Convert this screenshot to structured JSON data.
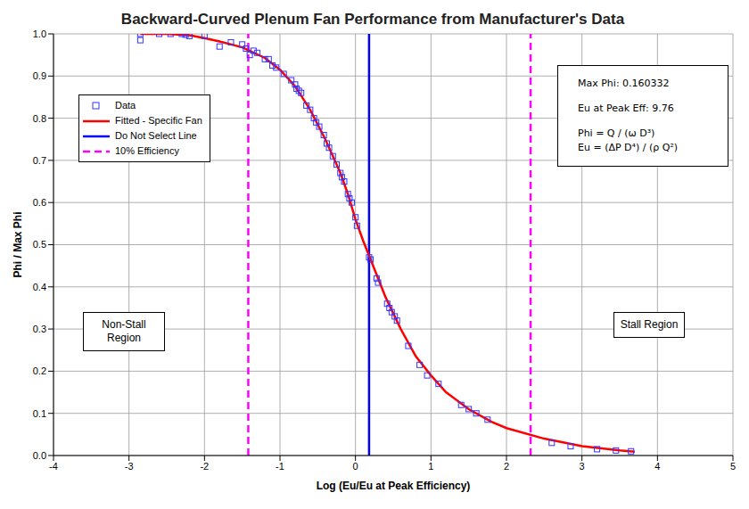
{
  "chart_data": {
    "type": "scatter",
    "title": "Backward-Curved Plenum Fan Performance from Manufacturer's Data",
    "x_label": "Log (Eu/Eu at Peak Efficiency)",
    "y_label": "Phi / Max Phi",
    "xlim": [
      -4,
      5
    ],
    "xticks": [
      -4,
      -3,
      -2,
      -1,
      0,
      1,
      2,
      3,
      4,
      5
    ],
    "ylim": [
      0,
      1
    ],
    "yticks": [
      {
        "value": 0,
        "label": "0.0"
      },
      0.1,
      0.2,
      0.3,
      0.4,
      0.5,
      0.6,
      0.7,
      0.8,
      0.9,
      {
        "value": 1,
        "label": "1.0"
      }
    ],
    "grid": true,
    "legend": "upper left",
    "series": [
      {
        "name": "Data",
        "type": "scatter",
        "color": "#3333ff",
        "marker": "square",
        "x": [
          -2.85,
          -2.85,
          -2.6,
          -2.45,
          -2.3,
          -2.25,
          -2.2,
          -2.0,
          -1.8,
          -1.65,
          -1.5,
          -1.45,
          -1.4,
          -1.35,
          -1.3,
          -1.2,
          -1.15,
          -1.1,
          -1.05,
          -0.95,
          -0.85,
          -0.8,
          -0.78,
          -0.75,
          -0.72,
          -0.65,
          -0.6,
          -0.55,
          -0.52,
          -0.48,
          -0.42,
          -0.38,
          -0.35,
          -0.3,
          -0.25,
          -0.2,
          -0.18,
          -0.15,
          -0.1,
          -0.08,
          -0.05,
          0.0,
          0.02,
          0.18,
          0.2,
          0.28,
          0.3,
          0.42,
          0.45,
          0.48,
          0.52,
          0.55,
          0.7,
          0.85,
          0.95,
          1.1,
          1.4,
          1.5,
          1.6,
          1.75,
          2.6,
          2.85,
          3.2,
          3.45,
          3.65
        ],
        "values": [
          1.0,
          0.985,
          1.0,
          1.0,
          1.0,
          0.998,
          0.995,
          0.995,
          0.97,
          0.98,
          0.975,
          0.965,
          0.95,
          0.96,
          0.955,
          0.94,
          0.94,
          0.925,
          0.92,
          0.905,
          0.89,
          0.88,
          0.87,
          0.865,
          0.86,
          0.83,
          0.82,
          0.8,
          0.79,
          0.78,
          0.76,
          0.74,
          0.73,
          0.71,
          0.69,
          0.67,
          0.66,
          0.65,
          0.62,
          0.61,
          0.6,
          0.565,
          0.545,
          0.47,
          0.465,
          0.42,
          0.41,
          0.36,
          0.35,
          0.34,
          0.33,
          0.32,
          0.26,
          0.215,
          0.19,
          0.17,
          0.12,
          0.11,
          0.1,
          0.085,
          0.03,
          0.022,
          0.015,
          0.012,
          0.01
        ]
      },
      {
        "name": "Fitted - Specific Fan",
        "type": "line",
        "color": "#ff0000",
        "line_style": "solid",
        "x": [
          -2.85,
          -2.5,
          -2.2,
          -2.0,
          -1.8,
          -1.5,
          -1.2,
          -1.0,
          -0.8,
          -0.6,
          -0.4,
          -0.2,
          -0.1,
          0.0,
          0.1,
          0.2,
          0.4,
          0.6,
          0.8,
          1.0,
          1.2,
          1.5,
          1.8,
          2.0,
          2.5,
          3.0,
          3.5,
          3.7
        ],
        "values": [
          1.0,
          1.0,
          0.997,
          0.99,
          0.982,
          0.968,
          0.943,
          0.915,
          0.876,
          0.82,
          0.75,
          0.67,
          0.62,
          0.56,
          0.51,
          0.465,
          0.375,
          0.3,
          0.235,
          0.19,
          0.15,
          0.11,
          0.08,
          0.065,
          0.04,
          0.022,
          0.012,
          0.009
        ]
      },
      {
        "name": "Do Not Select Line",
        "type": "vline",
        "color": "#0000ff",
        "line_style": "solid",
        "x": [
          0.18
        ]
      },
      {
        "name": "10% Efficiency",
        "type": "vline",
        "color": "#ff00ff",
        "line_style": "dashed",
        "x": [
          -1.42,
          2.32
        ]
      }
    ],
    "annotations": {
      "text_box": [
        "Max Phi: 0.160332",
        "Eu at Peak Eff: 9.76",
        "Phi = Q / (ω D³)",
        "Eu = (ΔP D⁴) / (ρ Q²)"
      ],
      "regions": [
        "Non-Stall Region",
        "Stall Region"
      ]
    }
  }
}
